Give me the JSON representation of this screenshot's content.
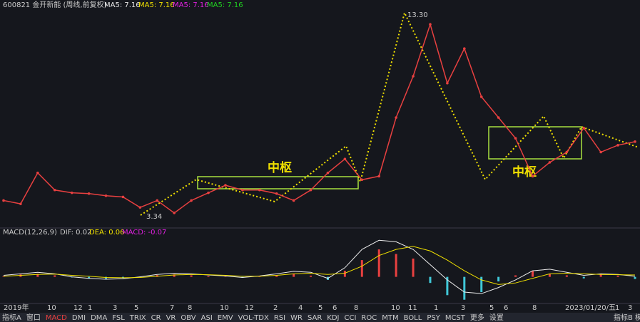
{
  "header": {
    "symbol": "600821 金开新能 (周线,前复权)",
    "ma": [
      {
        "text": "MA5: 7.16",
        "color": "#e8e8e8"
      },
      {
        "text": "MA5: 7.16",
        "color": "#f0e000"
      },
      {
        "text": "MA5: 7.16",
        "color": "#e020e0"
      },
      {
        "text": "MA5: 7.16",
        "color": "#20d020"
      }
    ]
  },
  "price": {
    "close": [
      4.21,
      4.04,
      5.61,
      4.74,
      4.6,
      4.56,
      4.45,
      4.39,
      3.86,
      4.21,
      3.58,
      4.21,
      4.6,
      4.98,
      4.74,
      4.74,
      4.56,
      4.21,
      4.74,
      5.61,
      6.31,
      5.26,
      5.44,
      8.41,
      10.5,
      13.13,
      10.15,
      11.9,
      9.46,
      8.41,
      7.36,
      5.44,
      6.14,
      6.66,
      7.88,
      6.66,
      7.01,
      7.19
    ],
    "color": "#e84040",
    "ylim": [
      3.0,
      14.0
    ],
    "high_label": "13.30",
    "low_label": "3.34",
    "pivot_labels": [
      "中枢",
      "中枢"
    ]
  },
  "macd": {
    "header": "MACD(12,26,9)",
    "dif_label": "DIF: 0.02",
    "dea_label": "DEA: 0.06",
    "macd_label": "MACD: -0.07",
    "hist": [
      0.02,
      0.08,
      0.1,
      0.05,
      -0.02,
      -0.05,
      -0.06,
      -0.04,
      0.01,
      0.06,
      0.08,
      0.05,
      0.03,
      0.01,
      -0.03,
      0.02,
      0.06,
      0.1,
      0.04,
      -0.1,
      0.2,
      0.55,
      0.9,
      0.75,
      0.6,
      -0.2,
      -0.6,
      -0.75,
      -0.5,
      -0.15,
      0.05,
      0.2,
      0.1,
      0.05,
      -0.05,
      0.08,
      0.04,
      -0.07
    ],
    "dif": [
      0.05,
      0.1,
      0.15,
      0.1,
      0,
      -0.05,
      -0.08,
      -0.06,
      0,
      0.08,
      0.12,
      0.1,
      0.06,
      0.03,
      -0.02,
      0.03,
      0.1,
      0.18,
      0.15,
      -0.05,
      0.3,
      0.9,
      1.2,
      1.15,
      0.9,
      0.4,
      -0.1,
      -0.5,
      -0.55,
      -0.35,
      -0.1,
      0.2,
      0.25,
      0.15,
      0.05,
      0.1,
      0.08,
      0.02
    ],
    "dea": [
      0.02,
      0.05,
      0.08,
      0.09,
      0.05,
      0.02,
      -0.02,
      -0.03,
      -0.02,
      0.02,
      0.06,
      0.08,
      0.07,
      0.05,
      0.02,
      0.02,
      0.05,
      0.1,
      0.12,
      0.08,
      0.12,
      0.35,
      0.7,
      0.9,
      1.0,
      0.85,
      0.55,
      0.2,
      -0.1,
      -0.25,
      -0.2,
      -0.05,
      0.1,
      0.12,
      0.1,
      0.08,
      0.07,
      0.06
    ],
    "ylim": [
      -0.85,
      1.3
    ]
  },
  "x_labels": [
    "2019年",
    "10",
    "12",
    "1",
    "3",
    "5",
    "7",
    "8",
    "10",
    "12",
    "2",
    "4",
    "5",
    "6",
    "8",
    "10",
    "11",
    "1",
    "3",
    "5",
    "6",
    "8",
    "2023/01/20/五",
    "1",
    "3"
  ],
  "tabs": [
    "指标A",
    "窗口",
    "MACD",
    "DMI",
    "DMA",
    "FSL",
    "TRIX",
    "CR",
    "VR",
    "OBV",
    "ASI",
    "EMV",
    "VOL-TDX",
    "RSI",
    "WR",
    "SAR",
    "KDJ",
    "CCI",
    "ROC",
    "MTM",
    "BOLL",
    "PSY",
    "MCST",
    "更多",
    "设置"
  ],
  "tab_right": "指标B 模"
}
